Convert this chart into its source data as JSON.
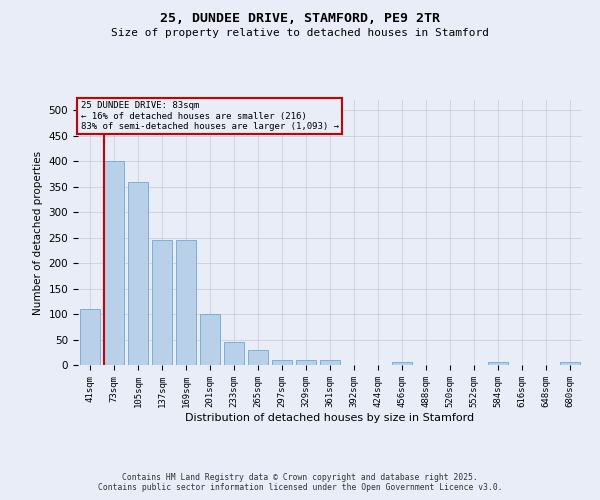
{
  "title": "25, DUNDEE DRIVE, STAMFORD, PE9 2TR",
  "subtitle": "Size of property relative to detached houses in Stamford",
  "xlabel": "Distribution of detached houses by size in Stamford",
  "ylabel": "Number of detached properties",
  "bar_labels": [
    "41sqm",
    "73sqm",
    "105sqm",
    "137sqm",
    "169sqm",
    "201sqm",
    "233sqm",
    "265sqm",
    "297sqm",
    "329sqm",
    "361sqm",
    "392sqm",
    "424sqm",
    "456sqm",
    "488sqm",
    "520sqm",
    "552sqm",
    "584sqm",
    "616sqm",
    "648sqm",
    "680sqm"
  ],
  "bar_values": [
    110,
    400,
    360,
    245,
    245,
    100,
    45,
    30,
    10,
    10,
    10,
    0,
    0,
    5,
    0,
    0,
    0,
    5,
    0,
    0,
    5
  ],
  "bar_color": "#b8d0e8",
  "bar_edge_color": "#6aaad4",
  "ylim": [
    0,
    520
  ],
  "yticks": [
    0,
    50,
    100,
    150,
    200,
    250,
    300,
    350,
    400,
    450,
    500
  ],
  "vline_color": "#cc0000",
  "annotation_title": "25 DUNDEE DRIVE: 83sqm",
  "annotation_line2": "← 16% of detached houses are smaller (216)",
  "annotation_line3": "83% of semi-detached houses are larger (1,093) →",
  "annotation_box_color": "#cc0000",
  "footer_line1": "Contains HM Land Registry data © Crown copyright and database right 2025.",
  "footer_line2": "Contains public sector information licensed under the Open Government Licence v3.0.",
  "background_color": "#e8edf8",
  "grid_color": "#c8c8d8"
}
